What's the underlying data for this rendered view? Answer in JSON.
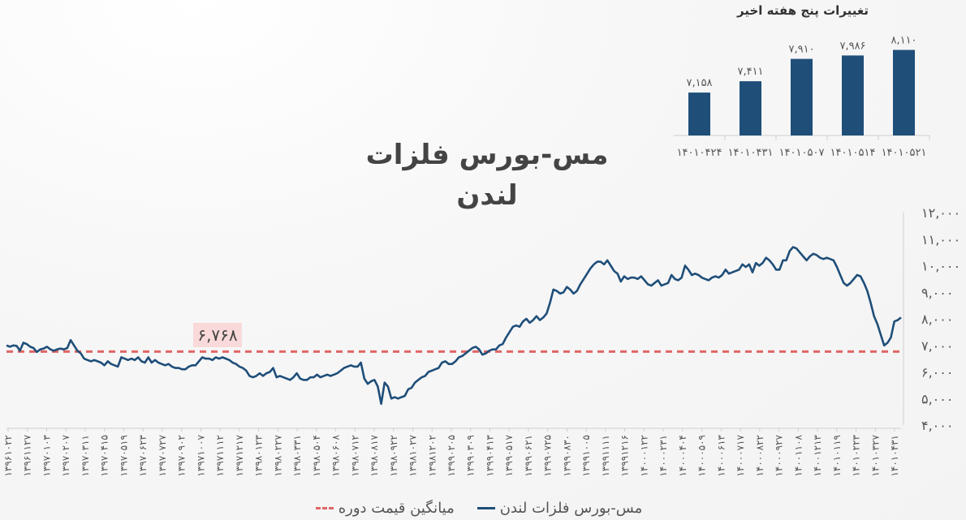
{
  "colors": {
    "series": "#1f4e79",
    "average": "#e06666",
    "bar": "#1f4e79",
    "axis_text": "#555555"
  },
  "chart_data": [
    {
      "type": "line",
      "title": "مس-بورس فلزات لندن",
      "ylim": [
        4000,
        12000
      ],
      "y_ticks": [
        "۱۲,۰۰۰",
        "۱۱,۰۰۰",
        "۱۰,۰۰۰",
        "۹,۰۰۰",
        "۸,۰۰۰",
        "۷,۰۰۰",
        "۶,۰۰۰",
        "۵,۰۰۰",
        "۴,۰۰۰"
      ],
      "y_tick_values": [
        12000,
        11000,
        10000,
        9000,
        8000,
        7000,
        6000,
        5000,
        4000
      ],
      "x_ticks": [
        "۱۳۹۶۱۰۲۲",
        "۱۳۹۶۱۱۲۷",
        "۱۳۹۷۰۱۰۳",
        "۱۳۹۷۰۲۰۷",
        "۱۳۹۷۰۳۱۱",
        "۱۳۹۷۰۴۱۵",
        "۱۳۹۷۰۵۱۹",
        "۱۳۹۷۰۶۲۳",
        "۱۳۹۷۰۷۲۷",
        "۱۳۹۷۰۹۰۲",
        "۱۳۹۷۱۰۰۷",
        "۱۳۹۷۱۱۱۲",
        "۱۳۹۷۱۲۱۷",
        "۱۳۹۸۰۱۲۳",
        "۱۳۹۸۰۲۲۷",
        "۱۳۹۸۰۳۳۱",
        "۱۳۹۸۰۵۰۴",
        "۱۳۹۸۰۶۰۸",
        "۱۳۹۸۰۷۱۲",
        "۱۳۹۸۰۸۱۷",
        "۱۳۹۸۰۹۲۲",
        "۱۳۹۸۱۰۲۷",
        "۱۳۹۸۱۲۰۲",
        "۱۳۹۹۰۲۰۵",
        "۱۳۹۹۰۳۰۹",
        "۱۳۹۹۰۴۱۳",
        "۱۳۹۹۰۵۱۷",
        "۱۳۹۹۰۶۲۱",
        "۱۳۹۹۰۷۲۵",
        "۱۳۹۹۰۸۳۰",
        "۱۳۹۹۱۰۰۵",
        "۱۳۹۹۱۱۱۱",
        "۱۳۹۹۱۲۱۶",
        "۱۴۰۰۰۱۲۲",
        "۱۴۰۰۰۲۳۱",
        "۱۴۰۰۰۴۰۴",
        "۱۴۰۰۰۵۰۹",
        "۱۴۰۰۰۶۱۳",
        "۱۴۰۰۰۷۱۷",
        "۱۴۰۰۰۸۲۲",
        "۱۴۰۰۰۹۲۷",
        "۱۴۰۰۱۱۰۸",
        "۱۴۰۰۱۲۱۳",
        "۱۴۰۱۰۱۱۹",
        "۱۴۰۱۰۲۲۳",
        "۱۴۰۱۰۳۲۷",
        "۱۴۰۱۰۴۳۱"
      ],
      "average": {
        "name": "میانگین قیمت دوره",
        "value": 6768,
        "label": "۶,۷۶۸"
      },
      "series": [
        {
          "name": "مس-بورس فلزات لندن",
          "values": [
            7000,
            6950,
            7000,
            6980,
            6800,
            7100,
            7050,
            6950,
            6900,
            6750,
            6850,
            6880,
            6950,
            6850,
            6800,
            6850,
            6880,
            6850,
            6900,
            7200,
            7000,
            6800,
            6700,
            6500,
            6450,
            6400,
            6450,
            6400,
            6350,
            6250,
            6400,
            6300,
            6250,
            6200,
            6550,
            6500,
            6450,
            6500,
            6450,
            6550,
            6400,
            6350,
            6550,
            6350,
            6450,
            6350,
            6300,
            6250,
            6300,
            6200,
            6150,
            6150,
            6100,
            6100,
            6200,
            6250,
            6250,
            6400,
            6550,
            6500,
            6500,
            6450,
            6550,
            6500,
            6550,
            6500,
            6450,
            6350,
            6300,
            6200,
            6150,
            6050,
            5850,
            5800,
            5850,
            5950,
            5850,
            5950,
            6000,
            6150,
            5800,
            5850,
            5800,
            5750,
            5700,
            5800,
            5950,
            5750,
            5700,
            5700,
            5800,
            5800,
            5900,
            5800,
            5850,
            5900,
            5850,
            5900,
            5950,
            6050,
            6150,
            6200,
            6250,
            6200,
            6200,
            6350,
            5750,
            5550,
            5650,
            5700,
            5450,
            4800,
            5600,
            5450,
            5000,
            5050,
            5000,
            5050,
            5100,
            5350,
            5400,
            5600,
            5700,
            5800,
            5850,
            6000,
            6050,
            6100,
            6150,
            6350,
            6400,
            6300,
            6300,
            6400,
            6550,
            6600,
            6700,
            6800,
            6900,
            6950,
            6850,
            6650,
            6700,
            6800,
            6850,
            6850,
            7000,
            7050,
            7300,
            7500,
            7700,
            7750,
            7700,
            7900,
            8000,
            7850,
            7950,
            8100,
            7950,
            8050,
            8200,
            8600,
            9100,
            9050,
            8950,
            9000,
            9200,
            9100,
            8950,
            9050,
            9300,
            9500,
            9700,
            9900,
            10050,
            10150,
            10150,
            10050,
            10200,
            10000,
            9800,
            9700,
            9400,
            9600,
            9500,
            9550,
            9550,
            9500,
            9600,
            9450,
            9300,
            9250,
            9350,
            9450,
            9250,
            9300,
            9350,
            9650,
            9500,
            9450,
            9550,
            10000,
            9850,
            9650,
            9700,
            9650,
            9550,
            9500,
            9450,
            9550,
            9600,
            9550,
            9650,
            9850,
            9700,
            9750,
            9800,
            9850,
            10050,
            9950,
            10050,
            9750,
            10100,
            10000,
            10100,
            10300,
            10200,
            10050,
            9850,
            9850,
            10200,
            10200,
            10550,
            10700,
            10650,
            10500,
            10350,
            10200,
            10350,
            10450,
            10400,
            10300,
            10250,
            10300,
            10250,
            10200,
            9950,
            9650,
            9350,
            9250,
            9350,
            9500,
            9650,
            9600,
            9350,
            9050,
            8600,
            8100,
            7800,
            7400,
            7000,
            7100,
            7300,
            7900,
            7950,
            8050
          ]
        }
      ],
      "legend": "bottom"
    },
    {
      "type": "bar",
      "title": "تغییرات پنج هفته اخیر",
      "categories": [
        "۱۴۰۱۰۵۲۱",
        "۱۴۰۱۰۵۱۴",
        "۱۴۰۱۰۵۰۷",
        "۱۴۰۱۰۴۳۱",
        "۱۴۰۱۰۴۲۴"
      ],
      "values": [
        8110,
        7986,
        7910,
        7411,
        7158
      ],
      "value_labels": [
        "۸,۱۱۰",
        "۷,۹۸۶",
        "۷,۹۱۰",
        "۷,۴۱۱",
        "۷,۱۵۸"
      ],
      "ylim": [
        6200,
        8500
      ]
    }
  ]
}
